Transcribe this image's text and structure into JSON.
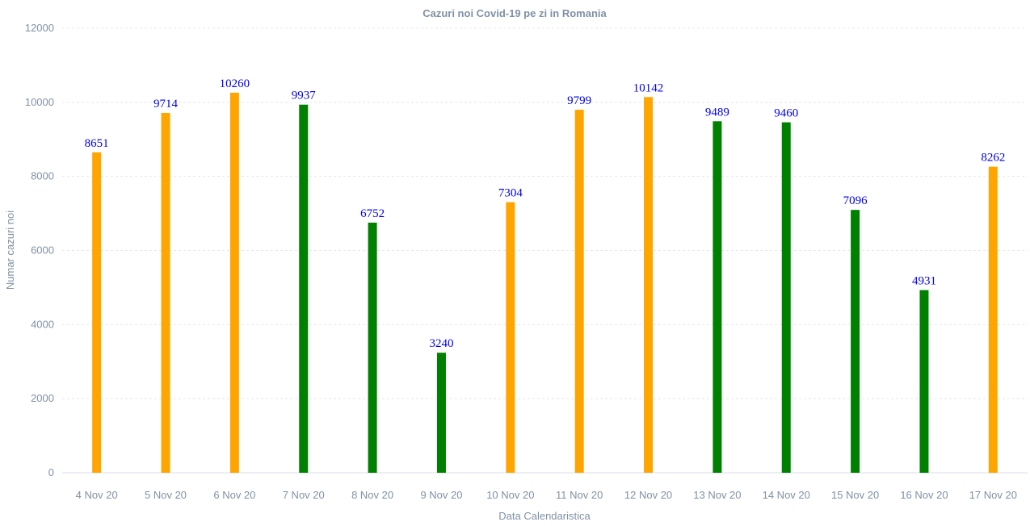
{
  "colors": {
    "increase": "#FFA500",
    "decrease": "#008000",
    "label": "#0000EE",
    "axis_text": "#8091A5"
  },
  "chart_data": {
    "type": "bar",
    "title": "Cazuri noi Covid-19 pe zi in Romania",
    "xlabel": "Data Calendaristica",
    "ylabel": "Numar cazuri noi",
    "ylim": [
      0,
      12000
    ],
    "yticks": [
      0,
      2000,
      4000,
      6000,
      8000,
      10000,
      12000
    ],
    "grid": true,
    "categories": [
      "4 Nov 20",
      "5 Nov 20",
      "6 Nov 20",
      "7 Nov 20",
      "8 Nov 20",
      "9 Nov 20",
      "10 Nov 20",
      "11 Nov 20",
      "12 Nov 20",
      "13 Nov 20",
      "14 Nov 20",
      "15 Nov 20",
      "16 Nov 20",
      "17 Nov 20"
    ],
    "values": [
      8651,
      9714,
      10260,
      9937,
      6752,
      3240,
      7304,
      9799,
      10142,
      9489,
      9460,
      7096,
      4931,
      8262
    ],
    "bar_colors": [
      "#FFA500",
      "#FFA500",
      "#FFA500",
      "#008000",
      "#008000",
      "#008000",
      "#FFA500",
      "#FFA500",
      "#FFA500",
      "#008000",
      "#008000",
      "#008000",
      "#008000",
      "#FFA500"
    ]
  }
}
